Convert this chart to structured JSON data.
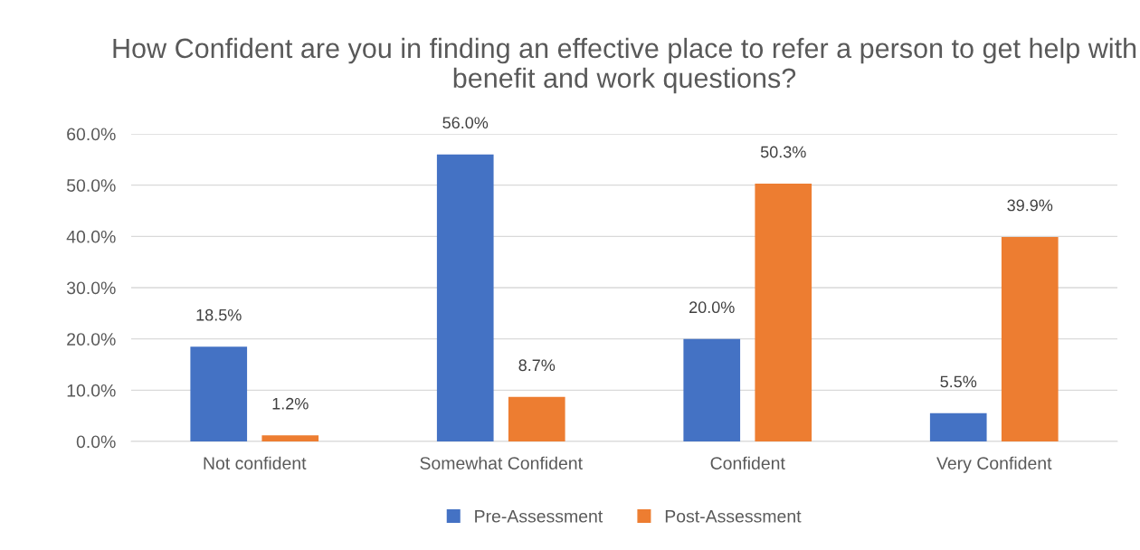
{
  "chart_data": {
    "type": "bar",
    "title": "How Confident are you in finding an effective place to refer a person to get help with benefit and work questions?",
    "categories": [
      "Not confident",
      "Somewhat Confident",
      "Confident",
      "Very Confident"
    ],
    "series": [
      {
        "name": "Pre-Assessment",
        "color": "#4472c4",
        "values": [
          18.5,
          56.0,
          20.0,
          5.5
        ],
        "value_labels": [
          "18.5%",
          "56.0%",
          "20.0%",
          "5.5%"
        ]
      },
      {
        "name": "Post-Assessment",
        "color": "#ed7d31",
        "values": [
          1.2,
          8.7,
          50.3,
          39.9
        ],
        "value_labels": [
          "1.2%",
          "8.7%",
          "50.3%",
          "39.9%"
        ]
      }
    ],
    "ylim": [
      0,
      60
    ],
    "yticks": [
      {
        "value": 0,
        "label": "0.0%"
      },
      {
        "value": 10,
        "label": "10.0%"
      },
      {
        "value": 20,
        "label": "20.0%"
      },
      {
        "value": 30,
        "label": "30.0%"
      },
      {
        "value": 40,
        "label": "40.0%"
      },
      {
        "value": 50,
        "label": "50.0%"
      },
      {
        "value": 60,
        "label": "60.0%"
      }
    ],
    "grid": "y",
    "legend": "bottom"
  }
}
